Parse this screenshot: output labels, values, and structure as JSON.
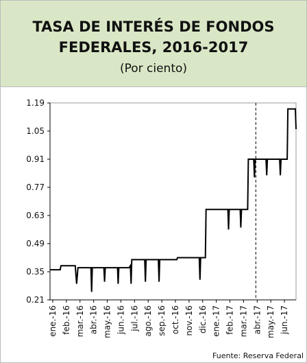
{
  "chart_data": {
    "type": "line",
    "title": [
      "TASA DE INTERÉS DE FONDOS",
      "FEDERALES, 2016-2017"
    ],
    "subtitle": "(Por ciento)",
    "source": "Fuente: Reserva Federal",
    "xlim": [
      -0.2,
      17.85
    ],
    "xticks": [
      {
        "value": 0,
        "label": "ene.-16"
      },
      {
        "value": 1,
        "label": "feb.-16"
      },
      {
        "value": 2,
        "label": "mar.-16"
      },
      {
        "value": 3,
        "label": "abr.-16"
      },
      {
        "value": 4,
        "label": "may.-16"
      },
      {
        "value": 5,
        "label": "jun.-16"
      },
      {
        "value": 6,
        "label": "jul.-16"
      },
      {
        "value": 7,
        "label": "ago.-16"
      },
      {
        "value": 8,
        "label": "sep.-16"
      },
      {
        "value": 9,
        "label": "oct.-16"
      },
      {
        "value": 10,
        "label": "nov.-16"
      },
      {
        "value": 11,
        "label": "dic.-16"
      },
      {
        "value": 12,
        "label": "ene.-17"
      },
      {
        "value": 13,
        "label": "feb.-17"
      },
      {
        "value": 14,
        "label": "mar.-17"
      },
      {
        "value": 15,
        "label": "abr.-17"
      },
      {
        "value": 16,
        "label": "may.-17"
      },
      {
        "value": 17,
        "label": "jun.-17"
      }
    ],
    "ylim": [
      0.21,
      1.19
    ],
    "yticks": [
      0.21,
      0.35,
      0.49,
      0.63,
      0.77,
      0.91,
      1.05,
      1.19
    ],
    "reference_line_x": 14.9,
    "series": [
      {
        "color": "#000000",
        "x": [
          -0.2,
          0.55,
          0.6,
          1.65,
          1.75,
          1.85,
          2.8,
          2.85,
          2.9,
          3.75,
          3.8,
          3.85,
          4.75,
          4.8,
          4.85,
          5.6,
          5.7,
          5.75,
          5.8,
          6.75,
          6.8,
          6.85,
          7.75,
          7.8,
          7.85,
          9.1,
          9.15,
          10.75,
          10.8,
          10.85,
          11.2,
          11.25,
          12.85,
          12.9,
          12.95,
          13.75,
          13.8,
          13.85,
          14.3,
          14.35,
          14.75,
          14.8,
          14.85,
          15.65,
          15.7,
          15.75,
          16.65,
          16.7,
          16.75,
          17.2,
          17.25,
          17.8,
          17.85
        ],
        "values": [
          0.36,
          0.36,
          0.38,
          0.38,
          0.29,
          0.37,
          0.37,
          0.25,
          0.37,
          0.37,
          0.3,
          0.37,
          0.37,
          0.29,
          0.37,
          0.37,
          0.38,
          0.29,
          0.41,
          0.41,
          0.3,
          0.41,
          0.41,
          0.3,
          0.41,
          0.41,
          0.42,
          0.42,
          0.31,
          0.42,
          0.42,
          0.66,
          0.66,
          0.56,
          0.66,
          0.66,
          0.57,
          0.66,
          0.66,
          0.91,
          0.91,
          0.82,
          0.91,
          0.91,
          0.83,
          0.91,
          0.91,
          0.83,
          0.91,
          0.91,
          1.16,
          1.16,
          1.06
        ]
      }
    ]
  }
}
